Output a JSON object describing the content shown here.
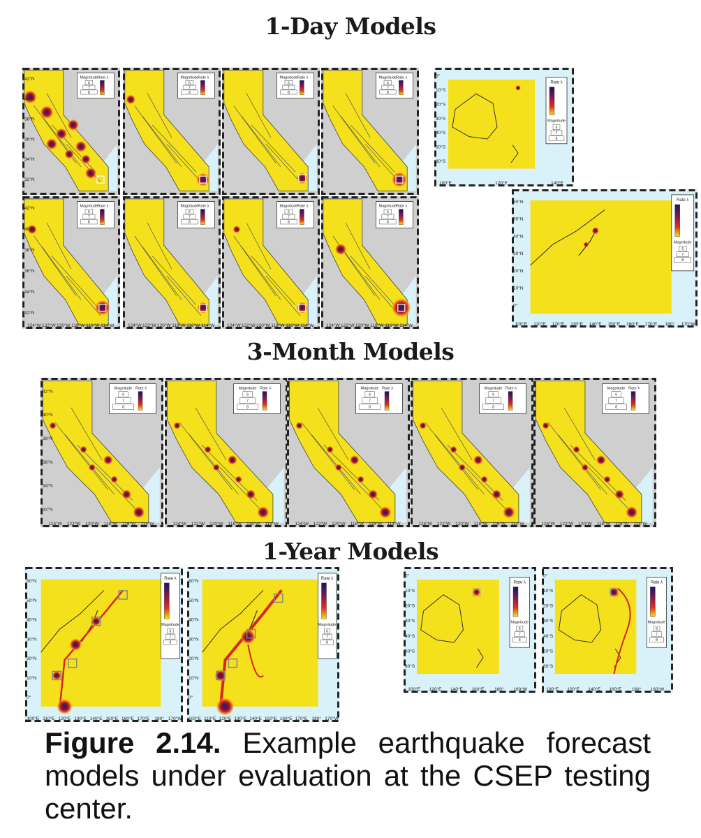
{
  "headings": {
    "one_day": "1-Day Models",
    "three_month": "3-Month Models",
    "one_year": "1-Year Models"
  },
  "caption": {
    "label": "Figure 2.14.",
    "text": "Example earthquake forecast models under evaluation at the CSEP testing center."
  },
  "legend": {
    "rate": "Rate λ",
    "magnitude": "Magnitude",
    "mag_levels": [
      "6",
      "7",
      "8"
    ]
  },
  "axes": {
    "ca_lat": [
      "42°N",
      "40°N",
      "38°N",
      "36°N",
      "34°N",
      "32°N"
    ],
    "ca_lon": [
      "124°W",
      "122°W",
      "120°W",
      "118°W",
      "116°W",
      "114°W"
    ],
    "au_lat": [
      "0°",
      "10°S",
      "20°S",
      "30°S",
      "40°S",
      "50°S",
      "60°S"
    ],
    "au_lon": [
      "100°E",
      "120°E",
      "140°E",
      "160°E",
      "180°",
      "160°W"
    ],
    "jp_lat": [
      "60°N",
      "50°N",
      "40°N",
      "30°N",
      "20°N",
      "10°N",
      "0°"
    ],
    "jp_lon": [
      "100°E",
      "110°E",
      "120°E",
      "130°E",
      "140°E",
      "150°E",
      "160°E",
      "170°E",
      "180°",
      "170°W"
    ]
  },
  "colors": {
    "forecast_yellow": "#f4e11b",
    "land_gray": "#cfcfcf",
    "ocean_blue": "#d9f1f8",
    "hot_red": "#d8261b",
    "hot_purple": "#2a1b6e",
    "frame": "#222222"
  }
}
